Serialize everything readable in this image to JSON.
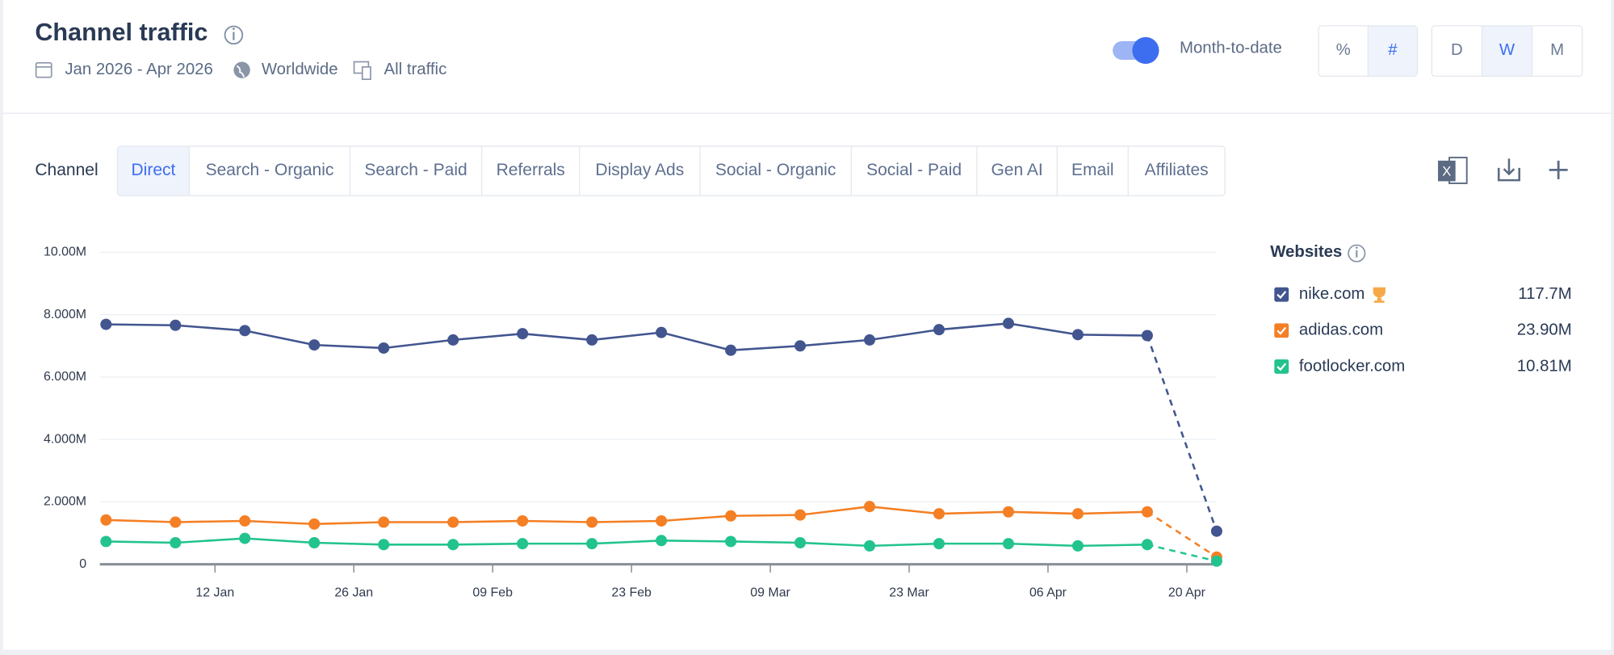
{
  "header": {
    "title": "Channel traffic",
    "date_range": "Jan 2026 - Apr 2026",
    "region": "Worldwide",
    "traffic": "All traffic"
  },
  "controls": {
    "toggle_label": "Month-to-date",
    "toggle_on": true,
    "metric_buttons": [
      "%",
      "#"
    ],
    "metric_active": "#",
    "granularity_buttons": [
      "D",
      "W",
      "M"
    ],
    "granularity_active": "W"
  },
  "tabs": {
    "label": "Channel",
    "items": [
      "Direct",
      "Search - Organic",
      "Search - Paid",
      "Referrals",
      "Display Ads",
      "Social - Organic",
      "Social - Paid",
      "Gen AI",
      "Email",
      "Affiliates"
    ],
    "active": "Direct"
  },
  "chart_data": {
    "type": "line",
    "legend_title": "Websites",
    "xlim": [
      0,
      16
    ],
    "xticks": [
      {
        "value": 1.57,
        "label": "12 Jan"
      },
      {
        "value": 3.57,
        "label": "26 Jan"
      },
      {
        "value": 5.57,
        "label": "09 Feb"
      },
      {
        "value": 7.57,
        "label": "23 Feb"
      },
      {
        "value": 9.57,
        "label": "09 Mar"
      },
      {
        "value": 11.57,
        "label": "23 Mar"
      },
      {
        "value": 13.57,
        "label": "06 Apr"
      },
      {
        "value": 15.57,
        "label": "20 Apr"
      }
    ],
    "ylim": [
      0,
      10000000
    ],
    "yticks": [
      0,
      {
        "value": 2000000,
        "label": "2.000M"
      },
      {
        "value": 4000000,
        "label": "4.000M"
      },
      {
        "value": 6000000,
        "label": "6.000M"
      },
      {
        "value": 8000000,
        "label": "8.000M"
      },
      {
        "value": 10000000,
        "label": "10.00M"
      }
    ],
    "grid": true,
    "last_point_partial": true,
    "series": [
      {
        "name": "nike.com",
        "color": "#42558f",
        "total": 117700000,
        "total_label": "117.7M",
        "values": [
          7690000,
          7660000,
          7490000,
          7030000,
          6930000,
          7190000,
          7390000,
          7190000,
          7430000,
          6860000,
          7000000,
          7190000,
          7520000,
          7720000,
          7360000,
          7330000,
          1060000
        ]
      },
      {
        "name": "adidas.com",
        "color": "#f47f24",
        "total": 23900000,
        "total_label": "23.90M",
        "values": [
          1420000,
          1350000,
          1390000,
          1290000,
          1350000,
          1350000,
          1390000,
          1350000,
          1390000,
          1550000,
          1580000,
          1850000,
          1620000,
          1680000,
          1620000,
          1680000,
          230000
        ]
      },
      {
        "name": "footlocker.com",
        "color": "#22c38e",
        "total": 10810000,
        "total_label": "10.81M",
        "values": [
          730000,
          690000,
          830000,
          690000,
          630000,
          630000,
          660000,
          660000,
          760000,
          730000,
          690000,
          590000,
          660000,
          660000,
          590000,
          630000,
          100000
        ]
      }
    ]
  }
}
